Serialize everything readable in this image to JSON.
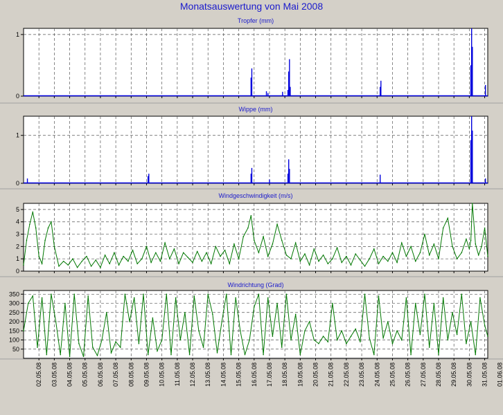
{
  "title": "Monatsauswertung von Mai 2008",
  "colors": {
    "blue": "#0000dd",
    "green": "#007700",
    "title": "#1a1acc"
  },
  "x_labels": [
    "02.05.08",
    "03.05.08",
    "04.05.08",
    "05.05.08",
    "06.05.08",
    "07.05.08",
    "08.05.08",
    "09.05.08",
    "10.05.08",
    "11.05.08",
    "12.05.08",
    "13.05.08",
    "14.05.08",
    "15.05.08",
    "16.05.08",
    "17.05.08",
    "18.05.08",
    "19.05.08",
    "20.05.08",
    "21.05.08",
    "22.05.08",
    "23.05.08",
    "24.05.08",
    "25.05.08",
    "26.05.08",
    "27.05.08",
    "28.05.08",
    "29.05.08",
    "30.05.08",
    "31.05.08",
    "01.06.08"
  ],
  "chart_data": [
    {
      "type": "bar",
      "title": "Tropfer (mm)",
      "ylim": [
        0,
        1.1
      ],
      "yticks": [
        0,
        1
      ],
      "x_unit": "day",
      "xlim": [
        1,
        31.2
      ],
      "x": [
        15.8,
        15.85,
        16.8,
        16.9,
        17.85,
        18.2,
        18.25,
        18.3,
        18.35,
        24.2,
        24.25,
        30.1,
        30.15,
        30.2,
        31.05
      ],
      "values": [
        0.3,
        0.45,
        0.08,
        0.05,
        0.07,
        0.1,
        0.4,
        0.6,
        0.15,
        0.15,
        0.25,
        0.5,
        1.1,
        0.8,
        0.18
      ],
      "color": "#0000dd"
    },
    {
      "type": "bar",
      "title": "Wippe (mm)",
      "ylim": [
        0,
        1.4
      ],
      "yticks": [
        0,
        1
      ],
      "x_unit": "day",
      "xlim": [
        1,
        31.2
      ],
      "x": [
        1.25,
        9.1,
        9.15,
        15.8,
        15.85,
        17.0,
        18.2,
        18.25,
        18.3,
        24.2,
        30.1,
        30.15,
        30.2,
        31.05
      ],
      "values": [
        0.1,
        0.15,
        0.2,
        0.2,
        0.32,
        0.08,
        0.2,
        0.5,
        0.3,
        0.18,
        0.9,
        1.4,
        1.1,
        0.1
      ],
      "color": "#0000dd"
    },
    {
      "type": "line",
      "title": "Windgeschwindigkeit (m/s)",
      "ylim": [
        0,
        5.5
      ],
      "yticks": [
        0,
        1,
        2,
        3,
        4,
        5
      ],
      "x_unit": "day",
      "xlim": [
        1,
        31.2
      ],
      "x": [
        1.0,
        1.2,
        1.4,
        1.6,
        1.8,
        2.0,
        2.2,
        2.4,
        2.6,
        2.8,
        3.0,
        3.3,
        3.6,
        3.9,
        4.2,
        4.5,
        4.8,
        5.1,
        5.4,
        5.7,
        6.0,
        6.3,
        6.6,
        6.9,
        7.2,
        7.5,
        7.8,
        8.1,
        8.4,
        8.7,
        9.0,
        9.3,
        9.6,
        9.9,
        10.2,
        10.5,
        10.8,
        11.1,
        11.4,
        11.7,
        12.0,
        12.3,
        12.6,
        12.9,
        13.2,
        13.5,
        13.8,
        14.1,
        14.4,
        14.7,
        15.0,
        15.3,
        15.6,
        15.8,
        16.0,
        16.3,
        16.6,
        16.9,
        17.2,
        17.5,
        17.8,
        18.1,
        18.4,
        18.7,
        19.0,
        19.3,
        19.6,
        19.9,
        20.2,
        20.5,
        20.8,
        21.1,
        21.4,
        21.7,
        22.0,
        22.3,
        22.6,
        22.9,
        23.2,
        23.5,
        23.8,
        24.1,
        24.4,
        24.7,
        25.0,
        25.3,
        25.6,
        25.9,
        26.2,
        26.5,
        26.8,
        27.1,
        27.4,
        27.7,
        28.0,
        28.3,
        28.6,
        28.9,
        29.2,
        29.5,
        29.8,
        30.0,
        30.1,
        30.2,
        30.4,
        30.6,
        30.8,
        31.0,
        31.2
      ],
      "values": [
        0.5,
        2.5,
        3.8,
        4.8,
        3.5,
        1.2,
        0.6,
        2.5,
        3.5,
        4.0,
        2.0,
        0.4,
        0.8,
        0.5,
        1.0,
        0.3,
        0.8,
        1.2,
        0.4,
        0.9,
        0.3,
        1.3,
        0.6,
        1.5,
        0.5,
        1.2,
        0.8,
        1.7,
        0.6,
        1.0,
        2.0,
        0.7,
        1.5,
        0.8,
        2.3,
        1.0,
        1.8,
        0.6,
        1.5,
        1.1,
        0.7,
        1.6,
        0.8,
        1.5,
        0.6,
        2.0,
        1.2,
        1.7,
        0.6,
        2.2,
        1.0,
        2.8,
        3.5,
        4.5,
        2.5,
        1.5,
        2.8,
        1.2,
        2.2,
        3.8,
        2.5,
        1.3,
        1.0,
        2.3,
        0.8,
        1.4,
        0.5,
        1.8,
        0.8,
        1.3,
        0.6,
        1.0,
        1.9,
        0.7,
        1.2,
        0.5,
        1.4,
        0.9,
        0.4,
        1.0,
        1.8,
        0.6,
        1.2,
        0.8,
        1.5,
        0.7,
        2.3,
        1.2,
        2.0,
        0.8,
        1.5,
        3.0,
        1.3,
        2.2,
        1.0,
        3.5,
        4.3,
        2.0,
        1.0,
        1.5,
        2.6,
        1.8,
        2.5,
        5.5,
        2.2,
        1.3,
        2.0,
        3.5,
        1.2
      ],
      "color": "#007700"
    },
    {
      "type": "line",
      "title": "Windrichtung (Grad)",
      "ylim": [
        0,
        370
      ],
      "yticks": [
        50,
        100,
        150,
        200,
        250,
        300,
        350
      ],
      "x_unit": "day",
      "xlim": [
        1,
        31.2
      ],
      "x": [
        1.0,
        1.3,
        1.6,
        1.9,
        2.2,
        2.5,
        2.8,
        3.1,
        3.4,
        3.7,
        4.0,
        4.3,
        4.6,
        4.9,
        5.2,
        5.5,
        5.8,
        6.1,
        6.4,
        6.7,
        7.0,
        7.3,
        7.6,
        7.9,
        8.2,
        8.5,
        8.8,
        9.1,
        9.4,
        9.7,
        10.0,
        10.3,
        10.6,
        10.9,
        11.2,
        11.5,
        11.8,
        12.1,
        12.4,
        12.7,
        13.0,
        13.3,
        13.6,
        13.9,
        14.2,
        14.5,
        14.8,
        15.1,
        15.4,
        15.7,
        16.0,
        16.3,
        16.6,
        16.9,
        17.2,
        17.5,
        17.8,
        18.1,
        18.4,
        18.7,
        19.0,
        19.3,
        19.6,
        19.9,
        20.2,
        20.5,
        20.8,
        21.1,
        21.4,
        21.7,
        22.0,
        22.3,
        22.6,
        22.9,
        23.2,
        23.5,
        23.8,
        24.1,
        24.4,
        24.7,
        25.0,
        25.3,
        25.6,
        25.9,
        26.2,
        26.5,
        26.8,
        27.1,
        27.4,
        27.7,
        28.0,
        28.3,
        28.6,
        28.9,
        29.2,
        29.5,
        29.8,
        30.1,
        30.4,
        30.7,
        31.0,
        31.2
      ],
      "values": [
        150,
        300,
        340,
        60,
        330,
        20,
        350,
        200,
        20,
        300,
        10,
        350,
        80,
        10,
        340,
        60,
        15,
        100,
        250,
        30,
        90,
        60,
        350,
        200,
        330,
        80,
        350,
        20,
        220,
        40,
        100,
        350,
        20,
        330,
        100,
        250,
        20,
        340,
        150,
        60,
        350,
        240,
        30,
        200,
        350,
        20,
        330,
        150,
        20,
        100,
        280,
        350,
        20,
        330,
        120,
        300,
        60,
        350,
        100,
        240,
        20,
        150,
        200,
        100,
        80,
        120,
        90,
        300,
        100,
        150,
        80,
        120,
        160,
        90,
        350,
        110,
        20,
        340,
        110,
        200,
        80,
        150,
        100,
        330,
        20,
        300,
        130,
        350,
        60,
        300,
        20,
        330,
        100,
        250,
        130,
        350,
        80,
        200,
        20,
        330,
        180,
        120
      ],
      "color": "#007700"
    }
  ]
}
